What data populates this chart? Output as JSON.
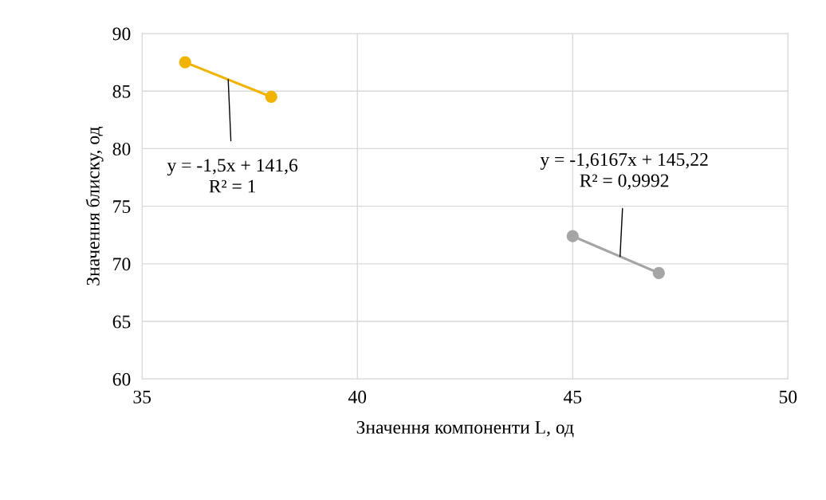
{
  "chart_data": {
    "type": "line",
    "xlabel": "Значення компоненти L, од",
    "ylabel": "Значення блиску, од",
    "series": [
      {
        "color": "#f0b400",
        "x": [
          36,
          38
        ],
        "values": [
          87.5,
          84.5
        ]
      },
      {
        "color": "#a5a5a5",
        "x": [
          45,
          47
        ],
        "values": [
          72.4,
          69.2
        ]
      }
    ],
    "xlim": [
      35,
      50
    ],
    "xticks": [
      35,
      40,
      45,
      50
    ],
    "ylim": [
      60,
      90
    ],
    "yticks": [
      60,
      65,
      70,
      75,
      80,
      85,
      90
    ],
    "grid": true,
    "marker": "circle",
    "line_style": "solid",
    "legend": false,
    "annotations": [
      {
        "text": "y = -1,5x + 141,6\nR² = 1",
        "x": 37,
        "y": 86
      },
      {
        "text": "y = -1,6167x + 145,22\nR² = 0,9992",
        "x": 46.1,
        "y": 70.64
      }
    ]
  }
}
